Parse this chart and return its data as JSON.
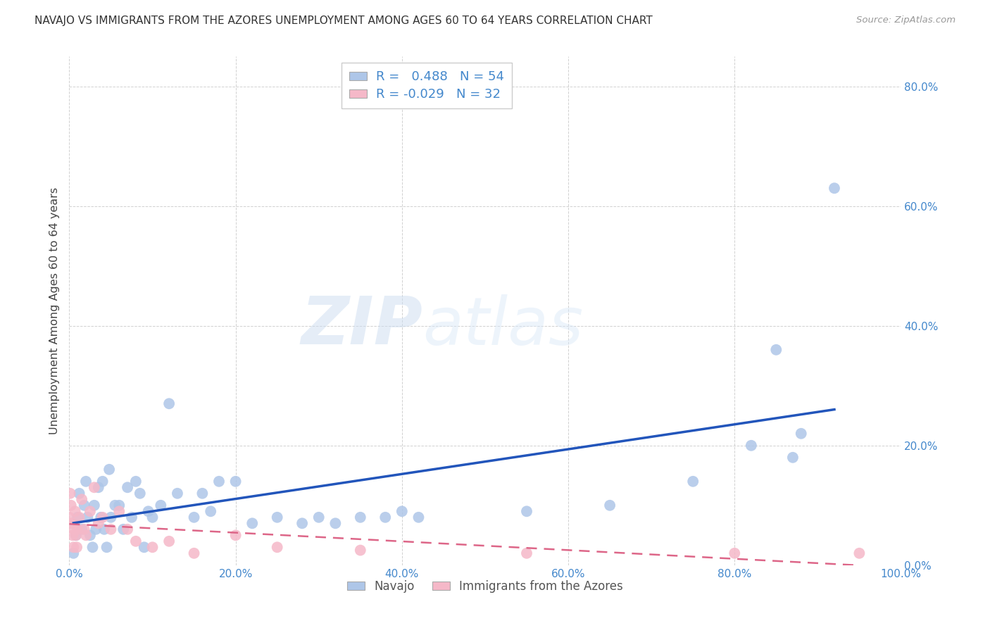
{
  "title": "NAVAJO VS IMMIGRANTS FROM THE AZORES UNEMPLOYMENT AMONG AGES 60 TO 64 YEARS CORRELATION CHART",
  "source": "Source: ZipAtlas.com",
  "ylabel": "Unemployment Among Ages 60 to 64 years",
  "watermark_zip": "ZIP",
  "watermark_atlas": "atlas",
  "xlim": [
    0.0,
    1.0
  ],
  "ylim": [
    0.0,
    0.85
  ],
  "xticks": [
    0.0,
    0.2,
    0.4,
    0.6,
    0.8,
    1.0
  ],
  "xticklabels": [
    "0.0%",
    "20.0%",
    "40.0%",
    "60.0%",
    "80.0%",
    "100.0%"
  ],
  "yticks": [
    0.0,
    0.2,
    0.4,
    0.6,
    0.8
  ],
  "yticklabels": [
    "0.0%",
    "20.0%",
    "40.0%",
    "60.0%",
    "80.0%"
  ],
  "navajo_R": 0.488,
  "navajo_N": 54,
  "azores_R": -0.029,
  "azores_N": 32,
  "navajo_color": "#aec6e8",
  "azores_color": "#f5b8c8",
  "navajo_line_color": "#2255bb",
  "azores_line_color": "#dd6688",
  "tick_color": "#4488cc",
  "legend_navajo_label": "Navajo",
  "legend_azores_label": "Immigrants from the Azores",
  "navajo_x": [
    0.005,
    0.008,
    0.01,
    0.012,
    0.015,
    0.018,
    0.02,
    0.022,
    0.025,
    0.028,
    0.03,
    0.032,
    0.035,
    0.038,
    0.04,
    0.042,
    0.045,
    0.048,
    0.05,
    0.055,
    0.06,
    0.065,
    0.07,
    0.075,
    0.08,
    0.085,
    0.09,
    0.095,
    0.1,
    0.11,
    0.12,
    0.13,
    0.15,
    0.16,
    0.17,
    0.18,
    0.2,
    0.22,
    0.25,
    0.28,
    0.3,
    0.32,
    0.35,
    0.38,
    0.4,
    0.42,
    0.55,
    0.65,
    0.75,
    0.82,
    0.85,
    0.87,
    0.88,
    0.92
  ],
  "navajo_y": [
    0.02,
    0.05,
    0.08,
    0.12,
    0.06,
    0.1,
    0.14,
    0.08,
    0.05,
    0.03,
    0.1,
    0.06,
    0.13,
    0.08,
    0.14,
    0.06,
    0.03,
    0.16,
    0.08,
    0.1,
    0.1,
    0.06,
    0.13,
    0.08,
    0.14,
    0.12,
    0.03,
    0.09,
    0.08,
    0.1,
    0.27,
    0.12,
    0.08,
    0.12,
    0.09,
    0.14,
    0.14,
    0.07,
    0.08,
    0.07,
    0.08,
    0.07,
    0.08,
    0.08,
    0.09,
    0.08,
    0.09,
    0.1,
    0.14,
    0.2,
    0.36,
    0.18,
    0.22,
    0.63
  ],
  "azores_x": [
    0.0,
    0.001,
    0.002,
    0.003,
    0.004,
    0.005,
    0.006,
    0.007,
    0.008,
    0.009,
    0.01,
    0.012,
    0.015,
    0.018,
    0.02,
    0.025,
    0.03,
    0.035,
    0.04,
    0.05,
    0.06,
    0.07,
    0.08,
    0.1,
    0.12,
    0.15,
    0.2,
    0.25,
    0.35,
    0.55,
    0.8,
    0.95
  ],
  "azores_y": [
    0.08,
    0.12,
    0.1,
    0.07,
    0.05,
    0.03,
    0.06,
    0.09,
    0.05,
    0.03,
    0.06,
    0.08,
    0.11,
    0.06,
    0.05,
    0.09,
    0.13,
    0.07,
    0.08,
    0.06,
    0.09,
    0.06,
    0.04,
    0.03,
    0.04,
    0.02,
    0.05,
    0.03,
    0.025,
    0.02,
    0.02,
    0.02
  ]
}
